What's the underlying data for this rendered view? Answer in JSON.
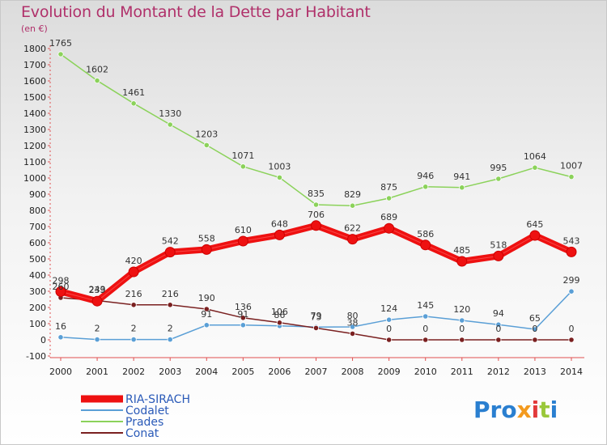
{
  "title": "Evolution du Montant de la Dette par Habitant",
  "unit": "(en €)",
  "logo": {
    "p1": "Pro",
    "p2": "x",
    "p3": "i",
    "p4": "t",
    "p5": "i"
  },
  "chart_data": {
    "type": "line",
    "x": [
      "2000",
      "2001",
      "2002",
      "2003",
      "2004",
      "2005",
      "2006",
      "2007",
      "2008",
      "2009",
      "2010",
      "2011",
      "2012",
      "2013",
      "2014"
    ],
    "ylim": [
      -100,
      1800
    ],
    "yticks": [
      -100,
      0,
      100,
      200,
      300,
      400,
      500,
      600,
      700,
      800,
      900,
      1000,
      1100,
      1200,
      1300,
      1400,
      1500,
      1600,
      1700,
      1800
    ],
    "grid": false,
    "legend_position": "bottom-left",
    "series": [
      {
        "name": "RIA-SIRACH",
        "color": "#ee1111",
        "thick": true,
        "values": [
          298,
          239,
          420,
          542,
          558,
          610,
          648,
          706,
          622,
          689,
          586,
          485,
          518,
          645,
          543
        ]
      },
      {
        "name": "Codalet",
        "color": "#5a9fd6",
        "thick": false,
        "values": [
          16,
          2,
          2,
          2,
          91,
          91,
          86,
          79,
          80,
          124,
          145,
          120,
          94,
          65,
          299
        ]
      },
      {
        "name": "Prades",
        "color": "#8bd25a",
        "thick": false,
        "values": [
          1765,
          1602,
          1461,
          1330,
          1203,
          1071,
          1003,
          835,
          829,
          875,
          946,
          941,
          995,
          1064,
          1007
        ]
      },
      {
        "name": "Conat",
        "color": "#7a2020",
        "thick": false,
        "values": [
          260,
          243,
          216,
          216,
          190,
          136,
          106,
          73,
          38,
          0,
          0,
          0,
          0,
          0,
          0
        ]
      }
    ]
  }
}
